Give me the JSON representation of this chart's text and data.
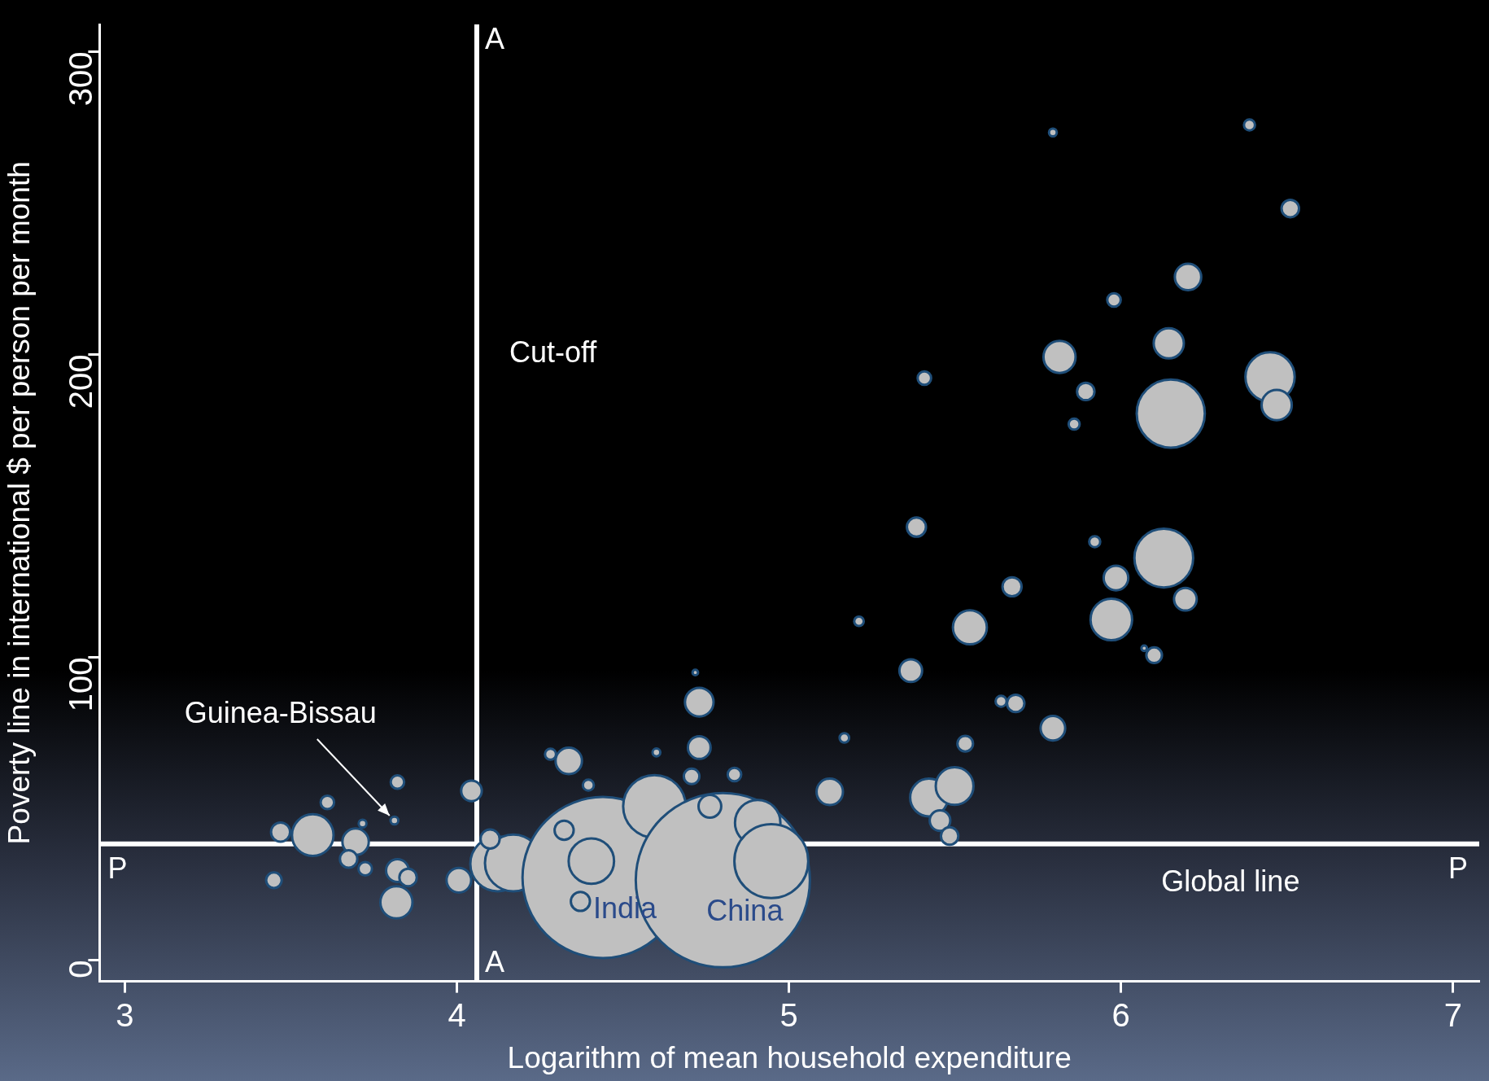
{
  "chart_data": {
    "type": "bubble",
    "xlabel": "Logarithm of mean household expenditure",
    "ylabel": "Poverty line in international $ per person per month",
    "x": [
      3.449,
      3.469,
      3.566,
      3.61,
      3.695,
      3.674,
      3.716,
      3.724,
      3.821,
      3.853,
      3.818,
      3.821,
      3.812,
      4.006,
      4.044,
      4.123,
      4.17,
      4.1,
      4.44,
      4.323,
      4.405,
      4.372,
      4.282,
      4.337,
      4.396,
      4.595,
      4.801,
      4.762,
      4.906,
      4.947,
      4.601,
      4.73,
      4.73,
      4.707,
      4.836,
      4.718,
      5.123,
      5.167,
      5.211,
      5.367,
      5.384,
      5.408,
      5.422,
      5.499,
      5.455,
      5.484,
      5.531,
      5.545,
      5.639,
      5.683,
      5.672,
      5.795,
      5.795,
      5.815,
      5.894,
      5.859,
      5.921,
      5.985,
      5.971,
      5.979,
      6.07,
      6.1,
      6.129,
      6.194,
      6.144,
      6.15,
      6.202,
      6.449,
      6.469,
      6.387,
      6.51
    ],
    "values": [
      26.4,
      42.3,
      41.3,
      52.1,
      39.1,
      33.4,
      45.1,
      30.2,
      29.6,
      27.3,
      19.1,
      58.8,
      46.1,
      26.4,
      55.9,
      31.8,
      32.1,
      40,
      27.3,
      42.9,
      32.7,
      19.4,
      68,
      65.8,
      57.8,
      50.8,
      26.4,
      50.8,
      45.4,
      32.7,
      68.6,
      85.2,
      70.2,
      60.7,
      61.3,
      95,
      55.6,
      73.4,
      111.9,
      95.6,
      143,
      192.2,
      53.7,
      57.5,
      46.1,
      41,
      71.5,
      109.9,
      85.5,
      84.8,
      123.3,
      76.6,
      273.3,
      199.2,
      187.8,
      177,
      138.2,
      126.2,
      112.5,
      218,
      103,
      100.7,
      132.8,
      119.2,
      203.7,
      180.5,
      225.6,
      192.6,
      183.3,
      275.8,
      248.2
    ],
    "sizes": [
      0.008,
      0.012,
      0.057,
      0.006,
      0.023,
      0.01,
      0.002,
      0.006,
      0.017,
      0.01,
      0.034,
      0.006,
      0.002,
      0.02,
      0.014,
      0.099,
      0.106,
      0.012,
      0.854,
      0.012,
      0.068,
      0.012,
      0.004,
      0.023,
      0.004,
      0.129,
      1,
      0.017,
      0.068,
      0.18,
      0.002,
      0.027,
      0.017,
      0.008,
      0.006,
      0.001,
      0.023,
      0.003,
      0.003,
      0.017,
      0.012,
      0.006,
      0.047,
      0.047,
      0.014,
      0.01,
      0.008,
      0.038,
      0.004,
      0.01,
      0.012,
      0.02,
      0.002,
      0.034,
      0.01,
      0.004,
      0.004,
      0.02,
      0.057,
      0.006,
      0.001,
      0.008,
      0.114,
      0.017,
      0.03,
      0.153,
      0.023,
      0.08,
      0.03,
      0.004,
      0.01
    ],
    "color": "#c0c0c0",
    "xlim": [
      2.924,
      7.079
    ],
    "ylim": [
      -7,
      309
    ],
    "xticks": [
      3,
      4,
      5,
      6,
      7
    ],
    "yticks": [
      0,
      100,
      200,
      300
    ],
    "grid": false,
    "legend": false,
    "ref_lines": [
      {
        "axis": "x",
        "value": 4.06,
        "label": "A"
      },
      {
        "axis": "y",
        "value": 38.4,
        "label": "P"
      }
    ],
    "annotations": [
      {
        "text": "Cut-off",
        "x": 4.06,
        "y": 200
      },
      {
        "text": "Global line",
        "x": 6.33,
        "y": 38.4
      },
      {
        "text": "Guinea-Bissau",
        "x": 3.812,
        "y": 46.1
      },
      {
        "text": "India",
        "x": 4.44,
        "y": 27.3
      },
      {
        "text": "China",
        "x": 4.801,
        "y": 26.4
      }
    ]
  }
}
